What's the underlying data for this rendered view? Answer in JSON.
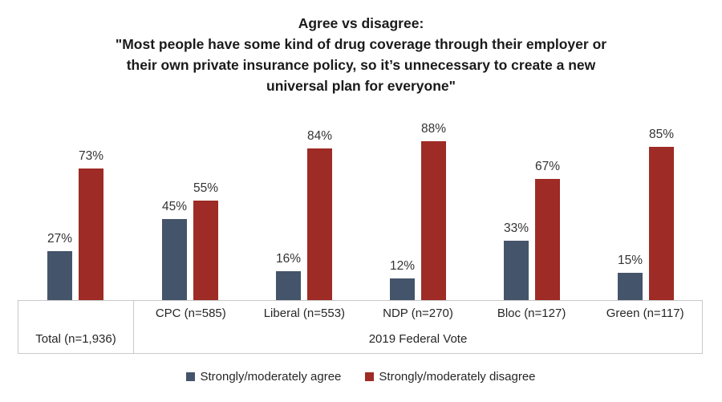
{
  "chart_data": {
    "type": "bar",
    "title": "Agree vs disagree: \"Most people have some kind of drug coverage through their employer or their own private insurance policy, so it’s unnecessary to create a new universal plan for everyone\"",
    "title_lines": [
      "Agree vs disagree:",
      "\"Most people have some kind of drug coverage through their employer or",
      "their own private insurance policy, so it’s unnecessary to create a new",
      "universal plan for everyone\""
    ],
    "categories": [
      "Total (n=1,936)",
      "CPC (n=585)",
      "Liberal (n=553)",
      "NDP (n=270)",
      "Bloc (n=127)",
      "Green (n=117)"
    ],
    "series": [
      {
        "name": "Strongly/moderately agree",
        "color": "#44546A",
        "values": [
          27,
          45,
          16,
          12,
          33,
          15
        ]
      },
      {
        "name": "Strongly/moderately disagree",
        "color": "#9E2B25",
        "values": [
          73,
          55,
          84,
          88,
          67,
          85
        ]
      }
    ],
    "group_axis_label": "2019 Federal Vote",
    "value_suffix": "%",
    "ylim": [
      0,
      100
    ],
    "grid": false,
    "legend_position": "bottom",
    "axis_box_border_color": "#C9C9C9"
  }
}
